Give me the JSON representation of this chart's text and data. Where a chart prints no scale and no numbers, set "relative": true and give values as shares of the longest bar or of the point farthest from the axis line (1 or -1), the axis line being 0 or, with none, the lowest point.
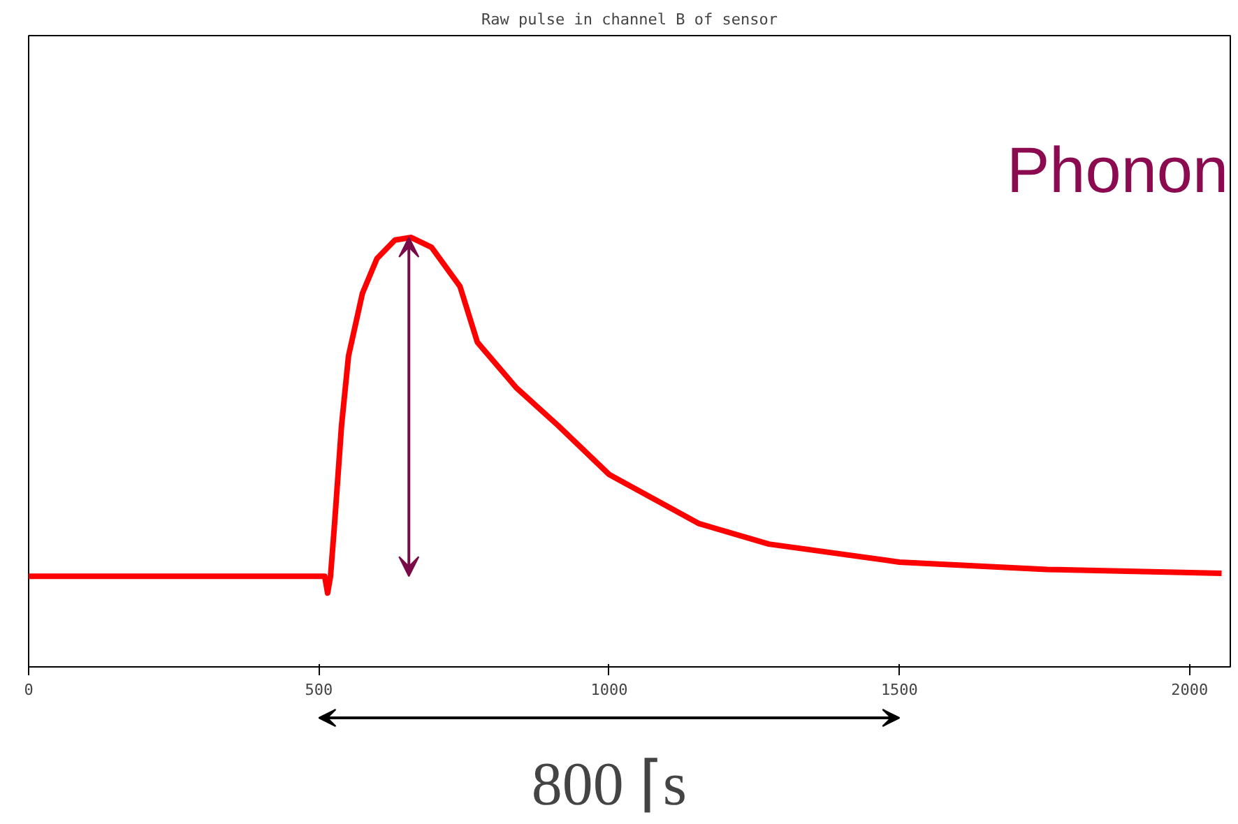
{
  "chart_data": {
    "type": "line",
    "title": "Raw pulse in channel B of sensor",
    "x": [
      0,
      200,
      400,
      510,
      515,
      520,
      527,
      539,
      551,
      575,
      600,
      631,
      659,
      694,
      743,
      773,
      840,
      912,
      1000,
      1154,
      1275,
      1500,
      1754,
      2055
    ],
    "values": [
      0.211,
      0.211,
      0.211,
      0.211,
      0.172,
      0.211,
      0.334,
      0.562,
      0.724,
      0.87,
      0.951,
      0.994,
      1,
      0.977,
      0.886,
      0.756,
      0.65,
      0.562,
      0.448,
      0.334,
      0.286,
      0.244,
      0.227,
      0.218
    ],
    "color": "#ff0000",
    "relative": true,
    "marker": "none",
    "line_style": "solid",
    "grid": false,
    "xlim": [
      0,
      2070
    ],
    "xticks": [
      0,
      500,
      1000,
      1500,
      2000
    ],
    "annotations": [
      "Phonon",
      "800 ⌈s"
    ]
  }
}
